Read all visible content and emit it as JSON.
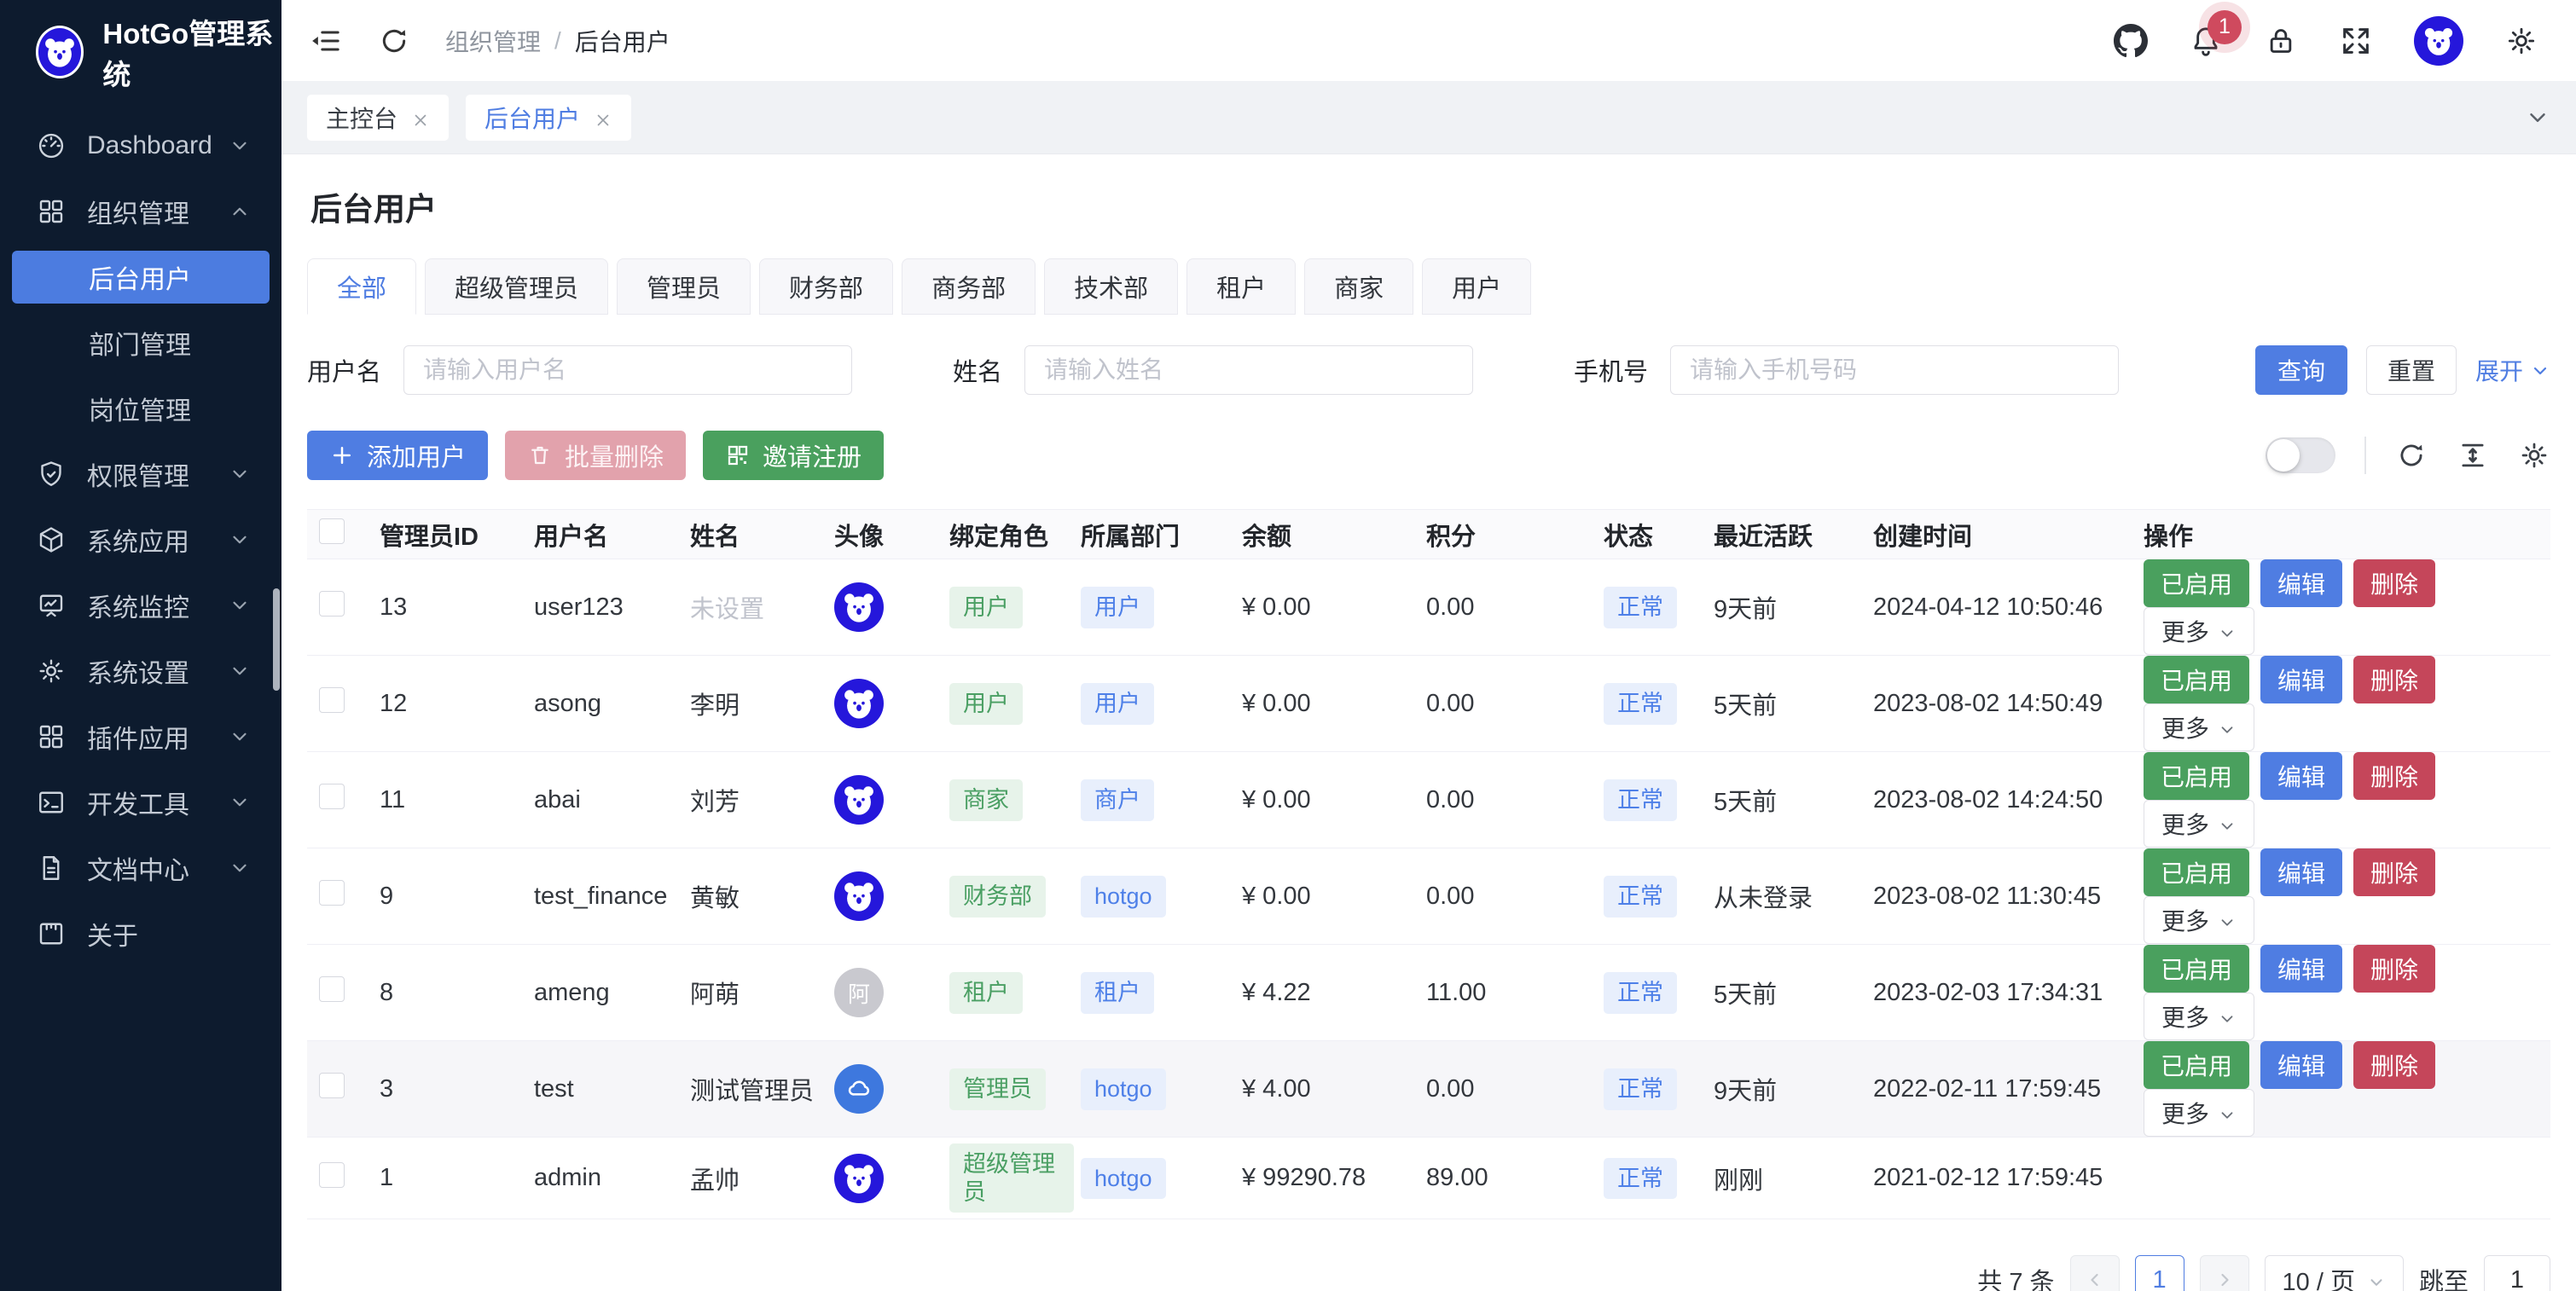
{
  "app": {
    "title": "HotGo管理系统"
  },
  "topbar": {
    "breadcrumb": {
      "parent": "组织管理",
      "separator": "/",
      "current": "后台用户"
    },
    "bell_badge": "1"
  },
  "nav_tabs": [
    {
      "label": "主控台",
      "active": false
    },
    {
      "label": "后台用户",
      "active": true
    }
  ],
  "sidebar": {
    "items": [
      {
        "icon": "dashboard",
        "label": "Dashboard",
        "chevron": "down"
      },
      {
        "icon": "grid",
        "label": "组织管理",
        "chevron": "up",
        "children": [
          {
            "label": "后台用户",
            "active": true
          },
          {
            "label": "部门管理",
            "active": false
          },
          {
            "label": "岗位管理",
            "active": false
          }
        ]
      },
      {
        "icon": "shield",
        "label": "权限管理",
        "chevron": "down"
      },
      {
        "icon": "cube",
        "label": "系统应用",
        "chevron": "down"
      },
      {
        "icon": "monitor",
        "label": "系统监控",
        "chevron": "down"
      },
      {
        "icon": "gear",
        "label": "系统设置",
        "chevron": "down"
      },
      {
        "icon": "grid",
        "label": "插件应用",
        "chevron": "down"
      },
      {
        "icon": "terminal",
        "label": "开发工具",
        "chevron": "down"
      },
      {
        "icon": "doc",
        "label": "文档中心",
        "chevron": "down"
      },
      {
        "icon": "about",
        "label": "关于",
        "chevron": null
      }
    ]
  },
  "page": {
    "title": "后台用户"
  },
  "filter_tabs": [
    {
      "label": "全部",
      "active": true
    },
    {
      "label": "超级管理员",
      "active": false
    },
    {
      "label": "管理员",
      "active": false
    },
    {
      "label": "财务部",
      "active": false
    },
    {
      "label": "商务部",
      "active": false
    },
    {
      "label": "技术部",
      "active": false
    },
    {
      "label": "租户",
      "active": false
    },
    {
      "label": "商家",
      "active": false
    },
    {
      "label": "用户",
      "active": false
    }
  ],
  "search": {
    "fields": [
      {
        "label": "用户名",
        "placeholder": "请输入用户名"
      },
      {
        "label": "姓名",
        "placeholder": "请输入姓名"
      },
      {
        "label": "手机号",
        "placeholder": "请输入手机号码"
      }
    ],
    "query_label": "查询",
    "reset_label": "重置",
    "expand_label": "展开"
  },
  "toolbar": {
    "add_label": "添加用户",
    "batch_delete_label": "批量删除",
    "invite_label": "邀请注册"
  },
  "table": {
    "columns": [
      "管理员ID",
      "用户名",
      "姓名",
      "头像",
      "绑定角色",
      "所属部门",
      "余额",
      "积分",
      "状态",
      "最近活跃",
      "创建时间",
      "操作"
    ],
    "rows": [
      {
        "id": "13",
        "username": "user123",
        "name": "未设置",
        "name_muted": true,
        "avatar": {
          "type": "koala"
        },
        "role": "用户",
        "dept": "用户",
        "balance": "¥ 0.00",
        "points": "0.00",
        "status": "正常",
        "active": "9天前",
        "created": "2024-04-12 10:50:46",
        "actions": true,
        "highlight": false
      },
      {
        "id": "12",
        "username": "asong",
        "name": "李明",
        "name_muted": false,
        "avatar": {
          "type": "koala"
        },
        "role": "用户",
        "dept": "用户",
        "balance": "¥ 0.00",
        "points": "0.00",
        "status": "正常",
        "active": "5天前",
        "created": "2023-08-02 14:50:49",
        "actions": true,
        "highlight": false
      },
      {
        "id": "11",
        "username": "abai",
        "name": "刘芳",
        "name_muted": false,
        "avatar": {
          "type": "koala"
        },
        "role": "商家",
        "dept": "商户",
        "balance": "¥ 0.00",
        "points": "0.00",
        "status": "正常",
        "active": "5天前",
        "created": "2023-08-02 14:24:50",
        "actions": true,
        "highlight": false
      },
      {
        "id": "9",
        "username": "test_finance",
        "name": "黄敏",
        "name_muted": false,
        "avatar": {
          "type": "koala"
        },
        "role": "财务部",
        "dept": "hotgo",
        "balance": "¥ 0.00",
        "points": "0.00",
        "status": "正常",
        "active": "从未登录",
        "created": "2023-08-02 11:30:45",
        "actions": true,
        "highlight": false
      },
      {
        "id": "8",
        "username": "ameng",
        "name": "阿萌",
        "name_muted": false,
        "avatar": {
          "type": "text",
          "text": "阿"
        },
        "role": "租户",
        "dept": "租户",
        "balance": "¥ 4.22",
        "points": "11.00",
        "status": "正常",
        "active": "5天前",
        "created": "2023-02-03 17:34:31",
        "actions": true,
        "highlight": false
      },
      {
        "id": "3",
        "username": "test",
        "name": "测试管理员",
        "name_muted": false,
        "avatar": {
          "type": "cloud"
        },
        "role": "管理员",
        "dept": "hotgo",
        "balance": "¥ 4.00",
        "points": "0.00",
        "status": "正常",
        "active": "9天前",
        "created": "2022-02-11 17:59:45",
        "actions": true,
        "highlight": true
      },
      {
        "id": "1",
        "username": "admin",
        "name": "孟帅",
        "name_muted": false,
        "avatar": {
          "type": "koala"
        },
        "role": "超级管理员",
        "dept": "hotgo",
        "balance": "¥ 99290.78",
        "points": "89.00",
        "status": "正常",
        "active": "刚刚",
        "created": "2021-02-12 17:59:45",
        "actions": false,
        "highlight": false
      }
    ]
  },
  "row_actions": {
    "enabled_label": "已启用",
    "edit_label": "编辑",
    "delete_label": "删除",
    "more_label": "更多"
  },
  "pagination": {
    "total": "共 7 条",
    "page": "1",
    "per_page": "10 / 页",
    "jump_label": "跳至",
    "jump_value": "1"
  },
  "colors": {
    "primary": "#4f7de2",
    "success": "#4aa05e",
    "error": "#c5465a",
    "sidebar_bg": "#0d1b2e",
    "sidebar_active": "#4c7ce0",
    "logo_blue": "#2517db",
    "tag_green_bg": "#e7f3ea",
    "tag_green_text": "#4a9f63",
    "tag_blue_bg": "#e8effc",
    "tag_blue_text": "#4e80e8",
    "badge_red": "#cf4a5e"
  }
}
